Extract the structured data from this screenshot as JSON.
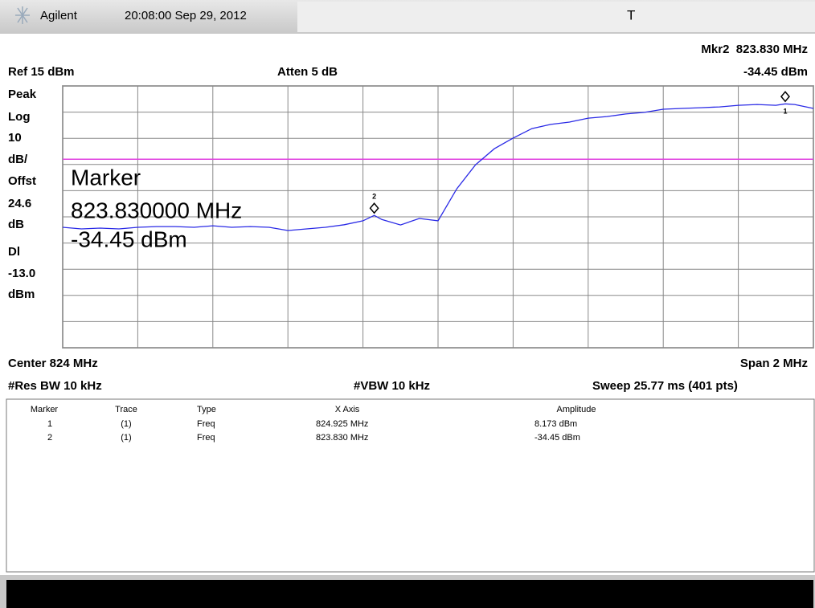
{
  "header": {
    "brand": "Agilent",
    "timestamp": "20:08:00 Sep 29, 2012",
    "trigger": "T",
    "marker_freq": "Mkr2  823.830 MHz",
    "marker_amp": "-34.45 dBm",
    "ref": "Ref 15 dBm",
    "atten": "Atten 5 dB"
  },
  "left_labels": [
    "Peak",
    "Log",
    "10",
    "dB/",
    "Offst",
    "24.6",
    "dB",
    "Dl",
    "dBm"
  ],
  "overlay": [
    "Marker",
    "823.830000 MHz",
    "-34.45 dBm"
  ],
  "footer": {
    "center": "Center 824 MHz",
    "span": "Span 2 MHz",
    "rbw": "#Res BW 10 kHz",
    "vbw": "#VBW 10 kHz",
    "sweep": "Sweep 25.77 ms (401 pts)"
  },
  "marker_table": {
    "columns": [
      "Marker",
      "Trace",
      "Type",
      "X Axis",
      "Amplitude"
    ],
    "rows": [
      [
        "1",
        "(1)",
        "Freq",
        "824.925 MHz",
        "8.173 dBm"
      ],
      [
        "2",
        "(1)",
        "Freq",
        "823.830 MHz",
        "-34.45 dBm"
      ]
    ]
  },
  "chart_data": {
    "type": "line",
    "x": [
      823.0,
      823.05,
      823.1,
      823.15,
      823.2,
      823.25,
      823.3,
      823.35,
      823.4,
      823.45,
      823.5,
      823.55,
      823.6,
      823.65,
      823.7,
      823.75,
      823.8,
      823.83,
      823.85,
      823.9,
      823.95,
      824.0,
      824.05,
      824.1,
      824.15,
      824.2,
      824.25,
      824.3,
      824.35,
      824.4,
      824.45,
      824.5,
      824.55,
      824.6,
      824.65,
      824.7,
      824.75,
      824.8,
      824.85,
      824.9,
      824.925,
      824.95,
      825.0
    ],
    "series": [
      {
        "color": "#2a2ae6",
        "values": [
          -39.0,
          -39.6,
          -39.3,
          -39.6,
          -39.0,
          -38.7,
          -38.7,
          -39.0,
          -38.4,
          -39.0,
          -38.7,
          -39.0,
          -40.2,
          -39.6,
          -39.0,
          -38.0,
          -36.5,
          -34.45,
          -36.0,
          -38.1,
          -35.6,
          -36.5,
          -24.3,
          -15.1,
          -9.0,
          -4.9,
          -1.3,
          0.3,
          1.2,
          2.7,
          3.3,
          4.3,
          4.9,
          6.1,
          6.4,
          6.7,
          7.0,
          7.6,
          7.9,
          7.6,
          8.173,
          7.9,
          6.4
        ]
      }
    ],
    "xlim": [
      823,
      825
    ],
    "ylim": [
      -85,
      15
    ],
    "xticks": [
      823,
      823.2,
      823.4,
      823.6,
      823.8,
      824,
      824.2,
      824.4,
      824.6,
      824.8,
      825
    ],
    "yticks": [
      -85,
      -75,
      -65,
      -55,
      -45,
      -35,
      -25,
      -15,
      -5,
      5,
      15
    ],
    "grid": true,
    "display_line": {
      "value": -13,
      "label": "-13.0",
      "color": "#e040e0"
    }
  }
}
